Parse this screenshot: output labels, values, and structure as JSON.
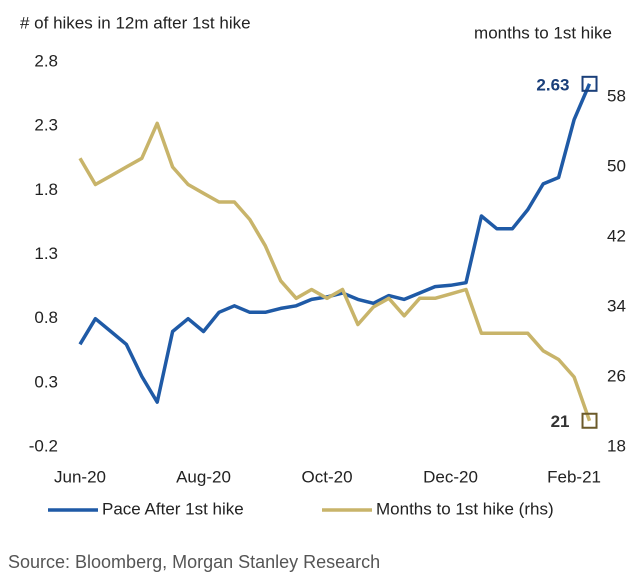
{
  "chart_data": {
    "type": "line",
    "y_label": "# of hikes in 12m after 1st hike",
    "y2_label": "months to 1st hike",
    "source": "Source: Bloomberg, Morgan Stanley Research",
    "categories": [
      "Jun-20",
      null,
      null,
      null,
      null,
      null,
      null,
      null,
      "Aug-20",
      null,
      null,
      null,
      null,
      null,
      null,
      null,
      "Oct-20",
      null,
      null,
      null,
      null,
      null,
      null,
      null,
      "Dec-20",
      null,
      null,
      null,
      null,
      null,
      null,
      null,
      "Feb-21",
      null
    ],
    "series": [
      {
        "name": "Pace After 1st hike",
        "color": "#1f5aa6",
        "values": [
          0.6,
          0.8,
          0.7,
          0.6,
          0.35,
          0.15,
          0.7,
          0.8,
          0.7,
          0.85,
          0.9,
          0.85,
          0.85,
          0.88,
          0.9,
          0.95,
          0.97,
          1.0,
          0.95,
          0.92,
          0.98,
          0.95,
          1.0,
          1.05,
          1.06,
          1.08,
          1.6,
          1.5,
          1.5,
          1.65,
          1.85,
          1.9,
          2.35,
          2.63
        ]
      },
      {
        "name": "Months to 1st hike (rhs)",
        "color": "#c8b46a",
        "axis": "y2",
        "values": [
          51,
          48,
          49,
          50,
          51,
          55,
          50,
          48,
          47,
          46,
          46,
          44,
          41,
          37,
          35,
          36,
          35,
          36,
          32,
          34,
          35,
          33,
          35,
          35,
          35.5,
          36,
          31,
          31,
          31,
          31,
          29,
          28,
          26,
          21
        ]
      }
    ],
    "ylim": [
      -0.2,
      2.8
    ],
    "yticks": [
      -0.2,
      0.3,
      0.8,
      1.3,
      1.8,
      2.3,
      2.8
    ],
    "y2lim": [
      18,
      62
    ],
    "y2ticks": [
      18,
      26,
      34,
      42,
      50,
      58
    ]
  }
}
